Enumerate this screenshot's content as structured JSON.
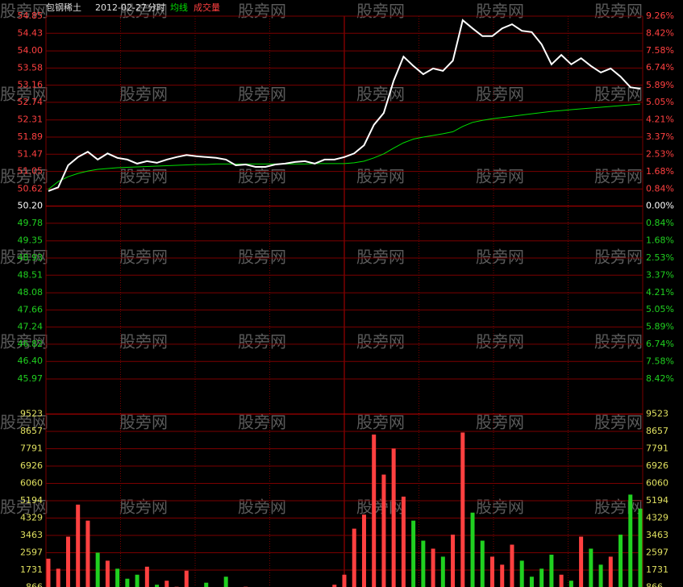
{
  "chart_data": [
    {
      "type": "line",
      "title": "包钢稀土",
      "date": "2012-02-27",
      "watermark": "股旁网",
      "series": [
        {
          "name": "分时",
          "color": "#ffffff",
          "values": [
            50.57,
            50.66,
            51.2,
            51.4,
            51.53,
            51.34,
            51.49,
            51.38,
            51.34,
            51.24,
            51.3,
            51.26,
            51.34,
            51.4,
            51.45,
            51.42,
            51.4,
            51.38,
            51.34,
            51.2,
            51.22,
            51.16,
            51.16,
            51.22,
            51.24,
            51.28,
            51.3,
            51.24,
            51.34,
            51.34,
            51.4,
            51.49,
            51.69,
            52.19,
            52.48,
            53.27,
            53.86,
            53.63,
            53.43,
            53.57,
            53.51,
            53.76,
            54.75,
            54.55,
            54.36,
            54.36,
            54.55,
            54.65,
            54.49,
            54.46,
            54.16,
            53.67,
            53.9,
            53.67,
            53.82,
            53.63,
            53.47,
            53.57,
            53.37,
            53.11,
            53.07
          ]
        },
        {
          "name": "均线",
          "color": "#00e000",
          "values": [
            50.61,
            50.8,
            50.92,
            51.0,
            51.06,
            51.1,
            51.12,
            51.14,
            51.15,
            51.16,
            51.17,
            51.18,
            51.19,
            51.2,
            51.21,
            51.22,
            51.22,
            51.23,
            51.23,
            51.23,
            51.23,
            51.23,
            51.23,
            51.23,
            51.23,
            51.23,
            51.23,
            51.24,
            51.24,
            51.24,
            51.24,
            51.26,
            51.3,
            51.38,
            51.48,
            51.62,
            51.75,
            51.84,
            51.89,
            51.93,
            51.97,
            52.02,
            52.15,
            52.25,
            52.3,
            52.34,
            52.37,
            52.4,
            52.43,
            52.46,
            52.49,
            52.52,
            52.54,
            52.56,
            52.58,
            52.6,
            52.62,
            52.64,
            52.66,
            52.68,
            52.7
          ]
        }
      ],
      "ylim": [
        45.97,
        54.85
      ],
      "yticks": [
        54.85,
        54.43,
        {
          "value": 54,
          "label": "54.00"
        },
        53.58,
        53.16,
        52.74,
        52.31,
        51.89,
        51.47,
        51.05,
        50.62,
        {
          "value": 50.2,
          "label": "50.20"
        },
        49.78,
        49.35,
        48.93,
        48.51,
        48.08,
        47.66,
        47.24,
        46.82,
        {
          "value": 46.4,
          "label": "46.40"
        },
        45.97
      ],
      "y2lim": [
        -8.42,
        9.26
      ],
      "y2ticks": [
        {
          "value": 9.26,
          "label": "9.26%"
        },
        {
          "value": 8.42,
          "label": "8.42%"
        },
        {
          "value": 7.58,
          "label": "7.58%"
        },
        {
          "value": 6.74,
          "label": "6.74%"
        },
        {
          "value": 5.89,
          "label": "5.89%"
        },
        {
          "value": 5.05,
          "label": "5.05%"
        },
        {
          "value": 4.21,
          "label": "4.21%"
        },
        {
          "value": 3.37,
          "label": "3.37%"
        },
        {
          "value": 2.53,
          "label": "2.53%"
        },
        {
          "value": 1.68,
          "label": "1.68%"
        },
        {
          "value": 0.84,
          "label": "0.84%"
        },
        {
          "value": 0,
          "label": "0.00%"
        },
        {
          "value": -0.84,
          "label": "0.84%"
        },
        {
          "value": -1.68,
          "label": "1.68%"
        },
        {
          "value": -2.53,
          "label": "2.53%"
        },
        {
          "value": -3.37,
          "label": "3.37%"
        },
        {
          "value": -4.21,
          "label": "4.21%"
        },
        {
          "value": -5.05,
          "label": "5.05%"
        },
        {
          "value": -5.89,
          "label": "5.89%"
        },
        {
          "value": -6.74,
          "label": "6.74%"
        },
        {
          "value": -7.58,
          "label": "7.58%"
        },
        {
          "value": -8.42,
          "label": "8.42%"
        }
      ],
      "up_color": "#ff4040",
      "down_color": "#20d020",
      "grid_color": "#7a0000"
    },
    {
      "type": "bar",
      "series": [
        {
          "name": "成交量",
          "color": "#ff4040",
          "values": [
            2300,
            1800,
            3400,
            5000,
            4200,
            2600,
            2200,
            1800,
            1300,
            1500,
            1900,
            1000,
            1200,
            900,
            1700,
            800,
            1100,
            600,
            1400,
            700,
            900,
            600,
            800,
            500,
            700,
            500,
            600,
            400,
            700,
            1000,
            1500,
            3800,
            4500,
            8500,
            6500,
            7800,
            5400,
            4200,
            3200,
            2800,
            2400,
            3500,
            8600,
            4600,
            3200,
            2400,
            2000,
            3000,
            2200,
            1400,
            1800,
            2500,
            1500,
            1200,
            3400,
            2800,
            2000,
            2400,
            3500,
            5500,
            4800
          ]
        }
      ],
      "ylim": [
        0,
        10389
      ],
      "yticks": [
        9523,
        8657,
        7791,
        6926,
        6060,
        5194,
        4329,
        3463,
        2597,
        1731,
        866
      ],
      "tick_color": "#e0e060"
    }
  ]
}
